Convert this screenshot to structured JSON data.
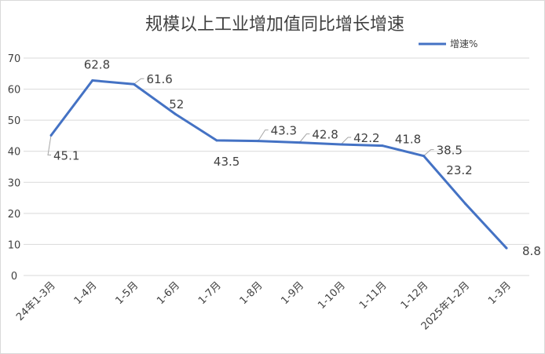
{
  "chart_data": {
    "type": "line",
    "title": "规模以上工业增加值同比增长增速",
    "categories": [
      "24年1-3月",
      "1-4月",
      "1-5月",
      "1-6月",
      "1-7月",
      "1-8月",
      "1-9月",
      "1-10月",
      "1-11月",
      "1-12月",
      "2025年1-2月",
      "1-3月"
    ],
    "series": [
      {
        "name": "增速%",
        "values": [
          45.1,
          62.8,
          61.6,
          52,
          43.5,
          43.3,
          42.8,
          42.2,
          41.8,
          38.5,
          23.2,
          8.8
        ],
        "color": "#4472c4"
      }
    ],
    "y_ticks": [
      0,
      10,
      20,
      30,
      40,
      50,
      60,
      70
    ],
    "ylim": [
      0,
      70
    ],
    "grid": true,
    "legend_position": "top-right",
    "data_labels": [
      "45.1",
      "62.8",
      "61.6",
      "52",
      "43.5",
      "43.3",
      "42.8",
      "42.2",
      "41.8",
      "38.5",
      "23.2",
      "8.8"
    ],
    "xlabel": "",
    "ylabel": ""
  }
}
